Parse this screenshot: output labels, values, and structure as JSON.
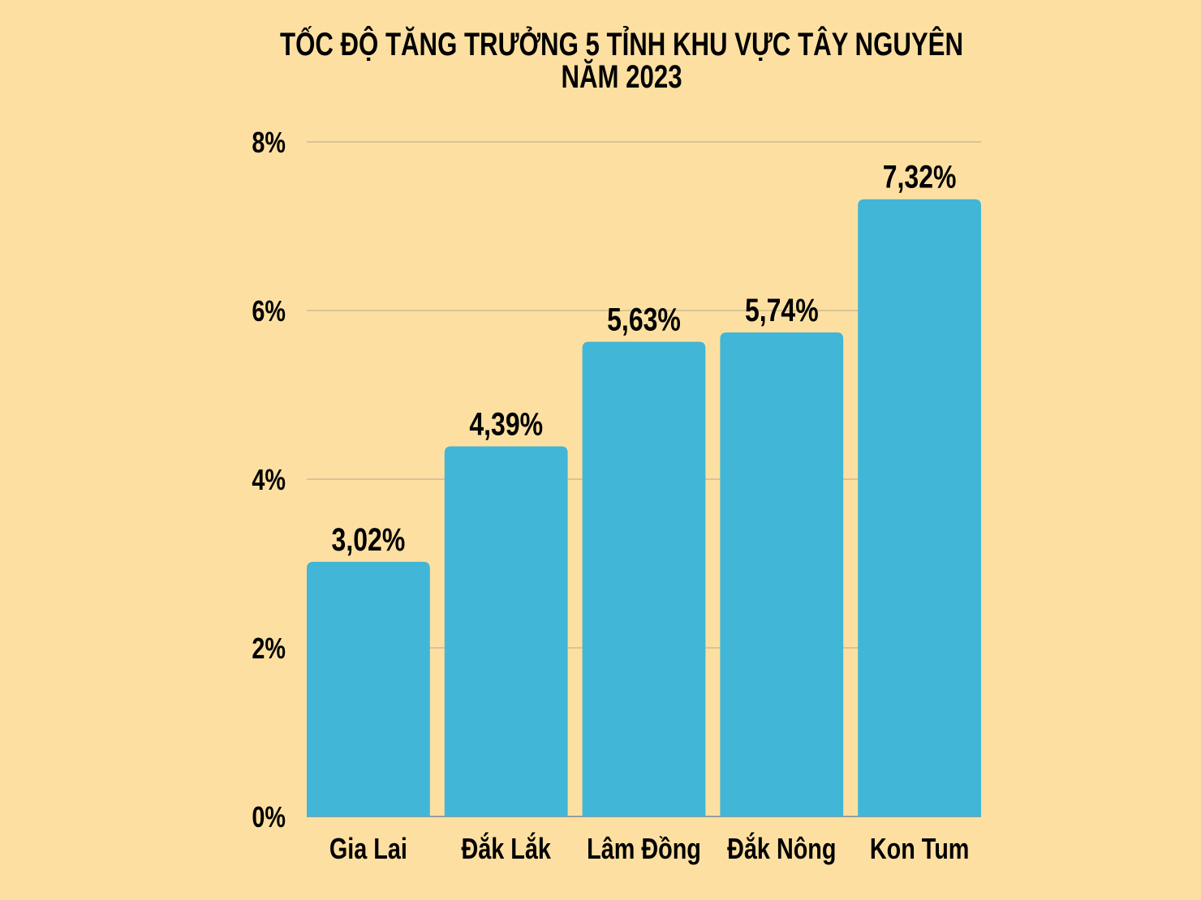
{
  "chart_data": {
    "type": "bar",
    "title": [
      "TỐC ĐỘ TĂNG TRƯỞNG 5 TỈNH KHU VỰC TÂY NGUYÊN",
      "NĂM 2023"
    ],
    "categories": [
      "Gia Lai",
      "Đắk Lắk",
      "Lâm Đồng",
      "Đắk Nông",
      "Kon Tum"
    ],
    "values": [
      3.02,
      4.39,
      5.63,
      5.74,
      7.32
    ],
    "data_labels": [
      "3,02%",
      "4,39%",
      "5,63%",
      "5,74%",
      "7,32%"
    ],
    "yticks": [
      0,
      2,
      4,
      6,
      8
    ],
    "ytick_labels": [
      "0%",
      "2%",
      "4%",
      "6%",
      "8%"
    ],
    "ylim": [
      0,
      8
    ],
    "xlabel": "",
    "ylabel": "",
    "grid": true,
    "colors": {
      "bar": "#41B6D6",
      "background": "#FDE0A1",
      "grid": "#B8A98A"
    }
  }
}
